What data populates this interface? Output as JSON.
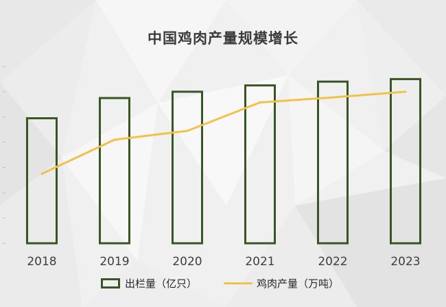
{
  "chart_data": {
    "type": "bar",
    "title": "中国鸡肉产量规模增长",
    "categories": [
      "2018",
      "2019",
      "2020",
      "2021",
      "2022",
      "2023"
    ],
    "series": [
      {
        "name": "出栏量（亿只）",
        "type": "bar",
        "values": [
          99,
          115,
          120,
          125,
          128,
          130
        ],
        "color": "#375623"
      },
      {
        "name": "鸡肉产量（万吨）",
        "type": "line",
        "secondary_axis": true,
        "values": [
          1250,
          1520,
          1590,
          1815,
          1855,
          1900
        ],
        "color": "#f2c14a"
      }
    ],
    "xlabel": "",
    "ylabel": "",
    "ylim": [
      0,
      140
    ],
    "y2lim": [
      700,
      2100
    ],
    "grid": false,
    "legend": "bottom"
  },
  "colors": {
    "background": "#f0f0f0",
    "text": "#3d3d3d"
  }
}
